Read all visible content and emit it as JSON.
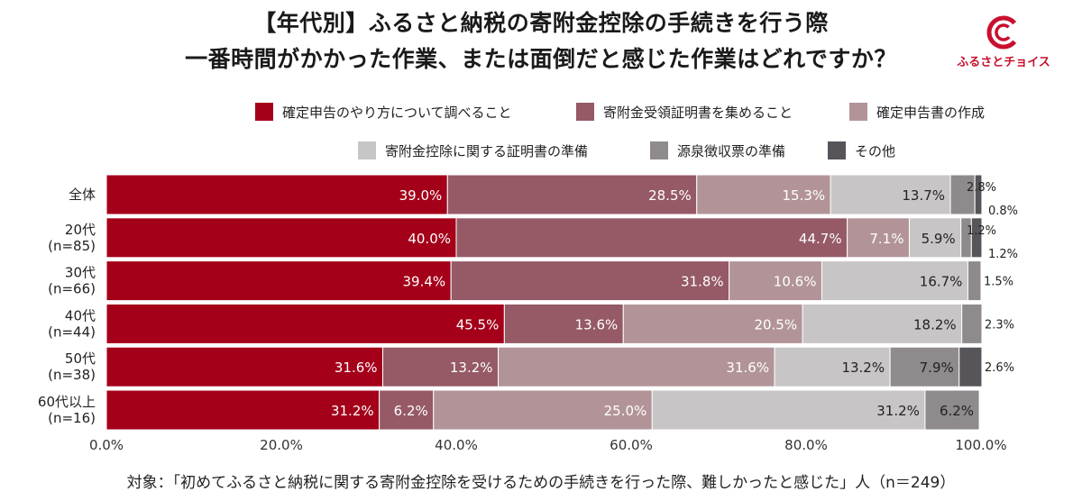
{
  "title_line1": "【年代別】ふるさと納税の寄附金控除の手続きを行う際",
  "title_line2": "一番時間がかかった作業、または面倒だと感じた作業はどれですか？",
  "logo_text": "ふるさとチョイス",
  "footnote": "対象：「初めてふるさと納税に関する寄附金控除を受けるための手続きを行った際、難しかったと感じた」人（n＝249）",
  "chart_data": {
    "type": "bar",
    "orientation": "horizontal",
    "stacked": true,
    "categories": [
      "全体",
      "20代\n(n=85)",
      "30代\n(n=66)",
      "40代\n(n=44)",
      "50代\n(n=38)",
      "60代以上\n(n=16)"
    ],
    "xlim": [
      0,
      100
    ],
    "xticks": [
      "0.0%",
      "20.0%",
      "40.0%",
      "60.0%",
      "80.0%",
      "100.0%"
    ],
    "grid": false,
    "legend_position": "top",
    "series": [
      {
        "name": "確定申告のやり方について調べること",
        "color": "#a4001a",
        "label_color": "#ffffff",
        "values": [
          39.0,
          40.0,
          39.4,
          45.5,
          31.6,
          31.2
        ],
        "labels": [
          "39.0%",
          "40.0%",
          "39.4%",
          "45.5%",
          "31.6%",
          "31.2%"
        ]
      },
      {
        "name": "寄附金受領証明書を集めること",
        "color": "#955a66",
        "label_color": "#ffffff",
        "values": [
          28.5,
          44.7,
          31.8,
          13.6,
          13.2,
          6.2
        ],
        "labels": [
          "28.5%",
          "44.7%",
          "31.8%",
          "13.6%",
          "13.2%",
          "6.2%"
        ]
      },
      {
        "name": "確定申告書の作成",
        "color": "#b29498",
        "label_color": "#ffffff",
        "values": [
          15.3,
          7.1,
          10.6,
          20.5,
          31.6,
          25.0
        ],
        "labels": [
          "15.3%",
          "7.1%",
          "10.6%",
          "20.5%",
          "31.6%",
          "25.0%"
        ]
      },
      {
        "name": "寄附金控除に関する証明書の準備",
        "color": "#c8c5c6",
        "label_color": "#222222",
        "values": [
          13.7,
          5.9,
          16.7,
          18.2,
          13.2,
          31.2
        ],
        "labels": [
          "13.7%",
          "5.9%",
          "16.7%",
          "18.2%",
          "13.2%",
          "31.2%"
        ]
      },
      {
        "name": "源泉徴収票の準備",
        "color": "#8f8a8c",
        "label_color": "#222222",
        "values": [
          2.8,
          1.2,
          1.5,
          2.3,
          7.9,
          6.2
        ],
        "labels": [
          "2.8%",
          "1.2%",
          "1.5%",
          "2.3%",
          "7.9%",
          "6.2%"
        ]
      },
      {
        "name": "その他",
        "color": "#57545a",
        "label_color": "#222222",
        "values": [
          0.8,
          1.2,
          0,
          0,
          2.6,
          0
        ],
        "labels": [
          "0.8%",
          "1.2%",
          "",
          "",
          "2.6%",
          ""
        ]
      }
    ]
  }
}
